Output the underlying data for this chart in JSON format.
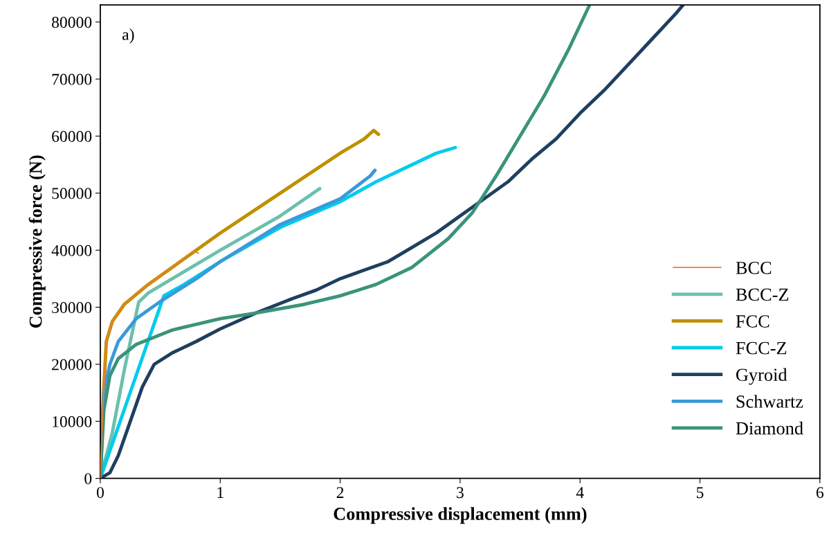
{
  "chart_data": {
    "type": "line",
    "xlabel": "Compressive displacement (mm)",
    "ylabel": "Compressive force (N)",
    "annotations": [
      "a)"
    ],
    "xlim": [
      0,
      6
    ],
    "ylim": [
      0,
      83000
    ],
    "xticks": [
      0,
      1,
      2,
      3,
      4,
      5,
      6
    ],
    "yticks": [
      0,
      10000,
      20000,
      30000,
      40000,
      50000,
      60000,
      70000,
      80000
    ],
    "grid": false,
    "legend": "bottom right",
    "marker": "none",
    "line_style": "solid",
    "series": [
      {
        "name": "BCC",
        "color": "#ed7d31",
        "x": [
          0,
          0.02,
          0.05,
          0.1,
          0.2,
          0.4,
          0.6,
          0.77,
          0.82
        ],
        "values": [
          0,
          12000,
          24000,
          27500,
          30500,
          34000,
          37000,
          39800,
          39500
        ]
      },
      {
        "name": "BCC-Z",
        "color": "#6cc0ac",
        "x": [
          0,
          0.1,
          0.2,
          0.32,
          0.4,
          0.6,
          1.0,
          1.5,
          1.83
        ],
        "values": [
          0,
          8000,
          19000,
          30900,
          32500,
          35000,
          40000,
          46000,
          50800
        ]
      },
      {
        "name": "FCC",
        "color": "#bf9000",
        "x": [
          0,
          0.02,
          0.05,
          0.1,
          0.2,
          0.4,
          0.6,
          0.8,
          1.0,
          1.5,
          2.0,
          2.2,
          2.28,
          2.32
        ],
        "values": [
          0,
          12000,
          24000,
          27500,
          30500,
          34000,
          37000,
          40000,
          43000,
          50000,
          57000,
          59500,
          61000,
          60300
        ]
      },
      {
        "name": "FCC-Z",
        "color": "#00ccee",
        "x": [
          0,
          0.53,
          0.7,
          1.0,
          1.5,
          2.0,
          2.3,
          2.6,
          2.8,
          2.96
        ],
        "values": [
          0,
          32000,
          34000,
          38000,
          44000,
          48500,
          52000,
          55000,
          57000,
          58000
        ]
      },
      {
        "name": "Gyroid",
        "color": "#1f3f60",
        "x": [
          0,
          0.08,
          0.15,
          0.25,
          0.35,
          0.45,
          0.6,
          0.8,
          1.0,
          1.3,
          1.6,
          1.8,
          2.0,
          2.2,
          2.4,
          2.6,
          2.8,
          3.0,
          3.2,
          3.4,
          3.6,
          3.8,
          4.0,
          4.2,
          4.4,
          4.6,
          4.8,
          4.86
        ],
        "values": [
          0,
          1000,
          4000,
          10000,
          16000,
          20000,
          22000,
          24000,
          26200,
          29000,
          31500,
          33000,
          35000,
          36500,
          38000,
          40500,
          43000,
          46000,
          49000,
          52000,
          56000,
          59500,
          64000,
          68000,
          72500,
          77000,
          81500,
          83000
        ]
      },
      {
        "name": "Schwartz",
        "color": "#3a9ad9",
        "x": [
          0,
          0.03,
          0.08,
          0.15,
          0.3,
          0.5,
          0.8,
          1.0,
          1.5,
          2.0,
          2.25,
          2.29
        ],
        "values": [
          0,
          15000,
          20000,
          24000,
          28000,
          31000,
          35000,
          38000,
          44500,
          49000,
          53000,
          54000
        ]
      },
      {
        "name": "Diamond",
        "color": "#3a9479",
        "x": [
          0,
          0.03,
          0.08,
          0.15,
          0.3,
          0.6,
          1.0,
          1.3,
          1.7,
          2.0,
          2.3,
          2.6,
          2.9,
          3.1,
          3.3,
          3.5,
          3.7,
          3.9,
          4.08
        ],
        "values": [
          0,
          12000,
          18000,
          21000,
          23500,
          26000,
          28000,
          29000,
          30500,
          32000,
          34000,
          37000,
          42000,
          46500,
          53000,
          60000,
          67000,
          75000,
          83000
        ]
      }
    ]
  }
}
